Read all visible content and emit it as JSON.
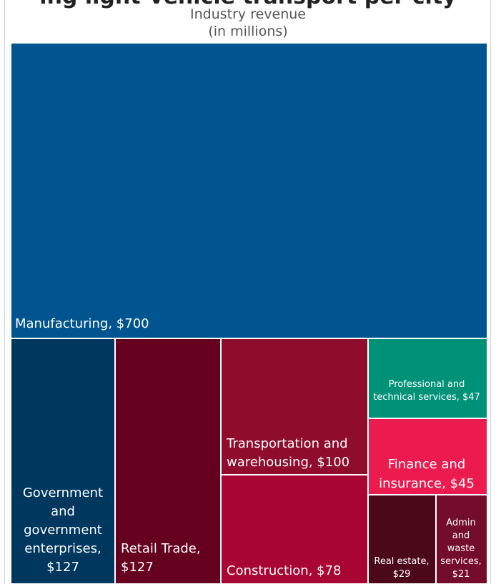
{
  "partial_title": "ing light-vehicle transport per city",
  "chart_data": {
    "type": "treemap",
    "title": "Industry revenue",
    "subtitle": "(in millions)",
    "unit": "$ millions",
    "items": [
      {
        "name": "Manufacturing",
        "value": 700,
        "label": [
          "Manufacturing, $700"
        ],
        "color": "#00548f"
      },
      {
        "name": "Government and government enterprises",
        "value": 127,
        "label": [
          "Government",
          "and",
          "government",
          "enterprises,",
          "$127"
        ],
        "color": "#00375f"
      },
      {
        "name": "Retail Trade",
        "value": 127,
        "label": [
          "Retail Trade,",
          "$127"
        ],
        "color": "#65001e"
      },
      {
        "name": "Transportation and warehousing",
        "value": 100,
        "label": [
          "Transportation and",
          "warehousing, $100"
        ],
        "color": "#8f0c2c"
      },
      {
        "name": "Construction",
        "value": 78,
        "label": [
          "Construction, $78"
        ],
        "color": "#a80532"
      },
      {
        "name": "Professional and technical services",
        "value": 47,
        "label": [
          "Professional and",
          "technical services, $47"
        ],
        "color": "#009279"
      },
      {
        "name": "Finance and insurance",
        "value": 45,
        "label": [
          "Finance and",
          "insurance, $45"
        ],
        "color": "#ec1b4f"
      },
      {
        "name": "Real estate",
        "value": 29,
        "label": [
          "Real estate,",
          "$29"
        ],
        "color": "#4a0819"
      },
      {
        "name": "Admin and waste services",
        "value": 21,
        "label": [
          "Admin",
          "and",
          "waste",
          "services,",
          "$21"
        ],
        "color": "#740c2b"
      }
    ]
  }
}
